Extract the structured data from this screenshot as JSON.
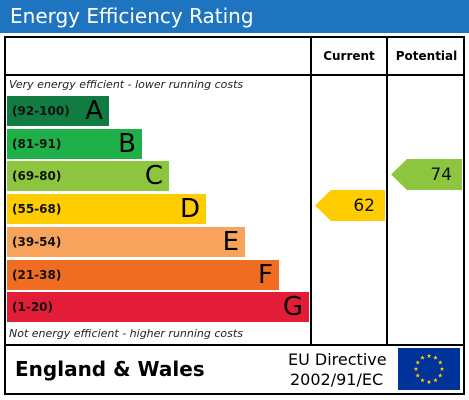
{
  "header": {
    "title": "Energy Efficiency Rating"
  },
  "columns": {
    "current": "Current",
    "potential": "Potential"
  },
  "notes": {
    "top": "Very energy efficient - lower running costs",
    "bottom": "Not energy efficient - higher running costs"
  },
  "chart_data": {
    "type": "bar",
    "title": "Energy Efficiency Rating",
    "categories": [
      "A",
      "B",
      "C",
      "D",
      "E",
      "F",
      "G"
    ],
    "bands": [
      {
        "letter": "A",
        "range": "(92-100)",
        "min": 92,
        "max": 100,
        "color": "#107c41"
      },
      {
        "letter": "B",
        "range": "(81-91)",
        "min": 81,
        "max": 91,
        "color": "#1fb04a"
      },
      {
        "letter": "C",
        "range": "(69-80)",
        "min": 69,
        "max": 80,
        "color": "#8cc63f"
      },
      {
        "letter": "D",
        "range": "(55-68)",
        "min": 55,
        "max": 68,
        "color": "#ffcc00"
      },
      {
        "letter": "E",
        "range": "(39-54)",
        "min": 39,
        "max": 54,
        "color": "#f7a35c"
      },
      {
        "letter": "F",
        "range": "(21-38)",
        "min": 21,
        "max": 38,
        "color": "#ef6c23"
      },
      {
        "letter": "G",
        "range": "(1-20)",
        "min": 1,
        "max": 20,
        "color": "#e31d38"
      }
    ],
    "current": {
      "value": 62,
      "band": "D",
      "color": "#ffcc00"
    },
    "potential": {
      "value": 74,
      "band": "C",
      "color": "#8cc63f"
    }
  },
  "footer": {
    "region": "England & Wales",
    "directive_line1": "EU Directive",
    "directive_line2": "2002/91/EC",
    "flag_icon": "eu-flag-icon",
    "flag_color": "#003399",
    "star_color": "#ffcc00"
  }
}
